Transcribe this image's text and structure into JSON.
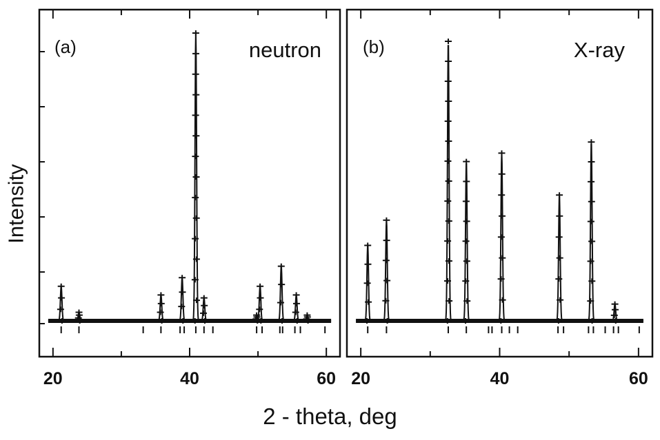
{
  "figure": {
    "ylabel": "Intensity",
    "xlabel": "2 - theta, deg"
  },
  "chart_data": [
    {
      "type": "line",
      "panel_label": "(a)",
      "title": "neutron",
      "xlim": [
        18,
        62
      ],
      "ylim": [
        -0.13,
        1.0
      ],
      "xticks": [
        20,
        40,
        60
      ],
      "xtick_labels": [
        "20",
        "40",
        "60"
      ],
      "grid": false,
      "baseline": 0.0,
      "peaks": [
        {
          "x": 21.2,
          "y": 0.12
        },
        {
          "x": 23.8,
          "y": 0.03
        },
        {
          "x": 35.8,
          "y": 0.09
        },
        {
          "x": 38.9,
          "y": 0.15
        },
        {
          "x": 40.9,
          "y": 1.0
        },
        {
          "x": 42.1,
          "y": 0.08
        },
        {
          "x": 49.8,
          "y": 0.02
        },
        {
          "x": 50.3,
          "y": 0.12
        },
        {
          "x": 53.4,
          "y": 0.19
        },
        {
          "x": 55.6,
          "y": 0.09
        },
        {
          "x": 57.2,
          "y": 0.02
        }
      ],
      "reflections": [
        21.2,
        23.8,
        33.2,
        35.8,
        38.6,
        39.2,
        40.9,
        42.1,
        43.4,
        49.8,
        50.6,
        53.2,
        53.6,
        55.4,
        56.2,
        59.8
      ]
    },
    {
      "type": "line",
      "panel_label": "(b)",
      "title": "X-ray",
      "xlim": [
        18,
        62
      ],
      "ylim": [
        -0.13,
        1.0
      ],
      "xticks": [
        20,
        40,
        60
      ],
      "xtick_labels": [
        "20",
        "40",
        "60"
      ],
      "grid": false,
      "baseline": 0.0,
      "peaks": [
        {
          "x": 21.0,
          "y": 0.27
        },
        {
          "x": 23.7,
          "y": 0.36
        },
        {
          "x": 32.6,
          "y": 1.0
        },
        {
          "x": 35.2,
          "y": 0.57
        },
        {
          "x": 40.3,
          "y": 0.6
        },
        {
          "x": 48.6,
          "y": 0.45
        },
        {
          "x": 53.2,
          "y": 0.64
        },
        {
          "x": 56.6,
          "y": 0.06
        }
      ],
      "reflections": [
        21.0,
        23.7,
        32.6,
        35.2,
        38.4,
        38.9,
        40.3,
        41.4,
        42.6,
        48.4,
        49.2,
        52.8,
        53.5,
        55.2,
        56.4,
        57.1,
        60.1
      ]
    }
  ]
}
